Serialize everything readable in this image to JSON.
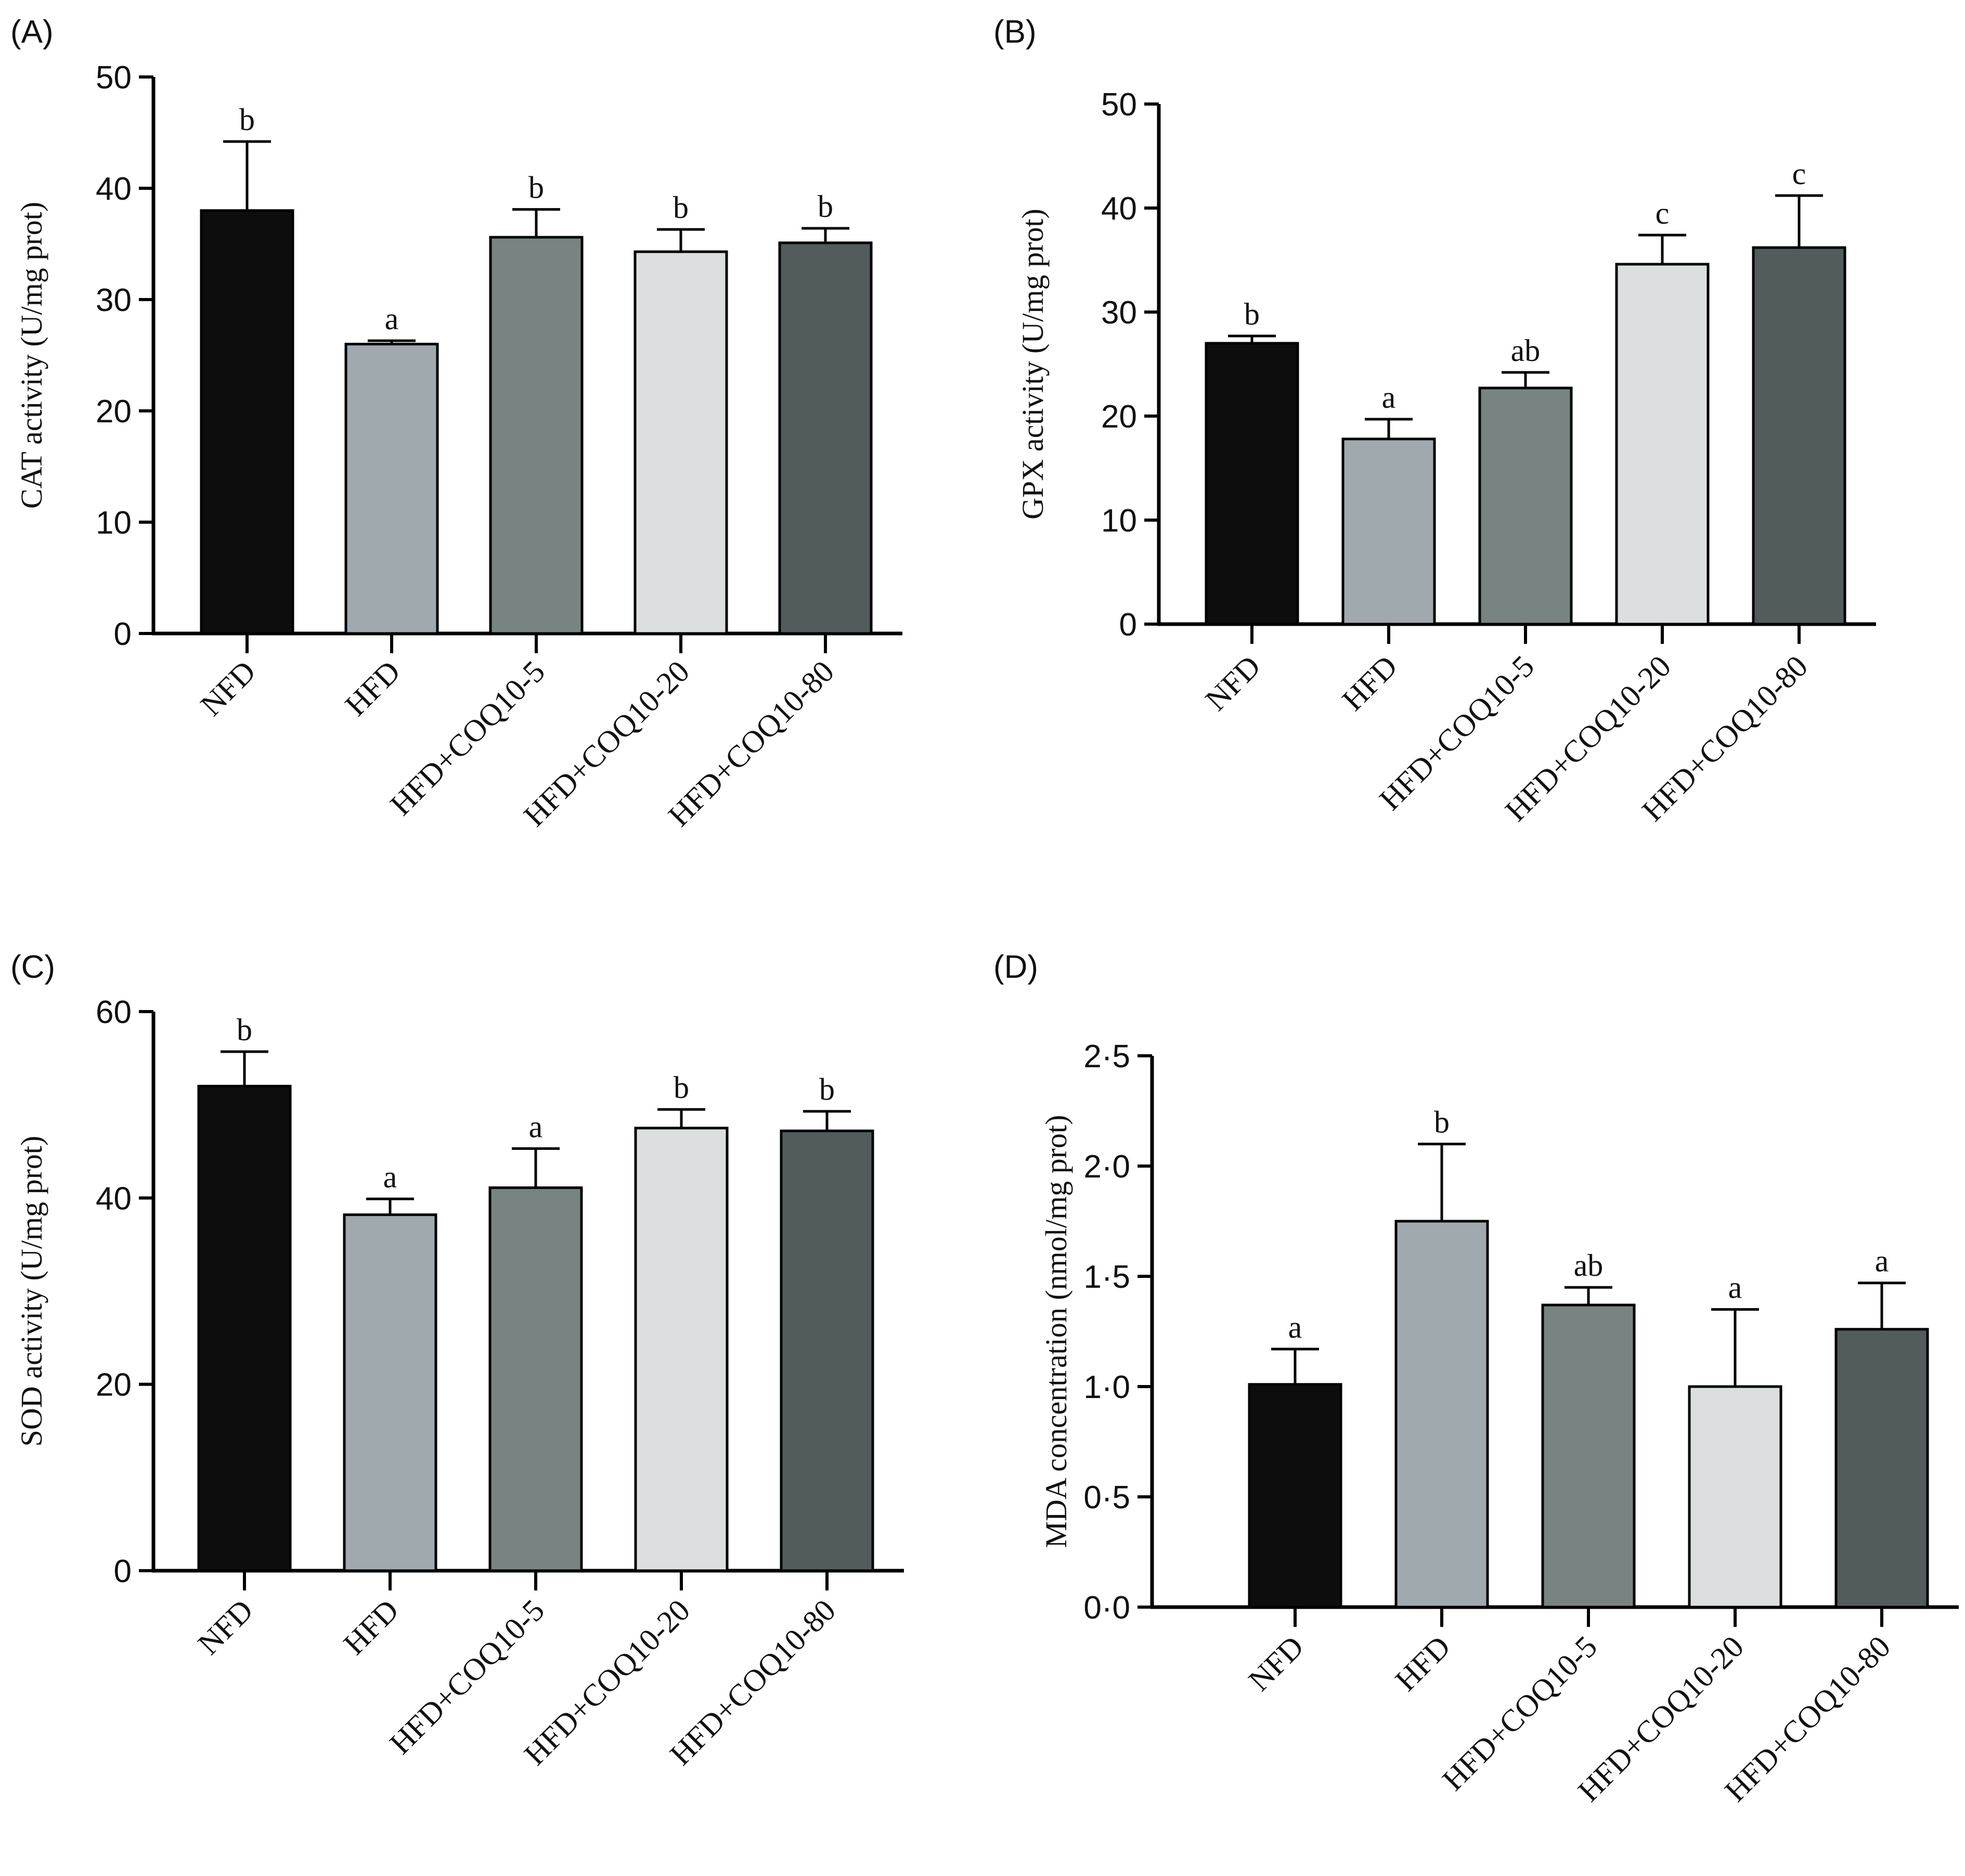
{
  "chart_data": [
    {
      "panel": "(A)",
      "type": "bar",
      "categories": [
        "NFD",
        "HFD",
        "HFD+COQ10-5",
        "HFD+COQ10-20",
        "HFD+COQ10-80"
      ],
      "values": [
        38.0,
        26.0,
        35.6,
        34.3,
        35.1
      ],
      "errors": [
        6.2,
        0.3,
        2.5,
        2.0,
        1.3
      ],
      "significance": [
        "b",
        "a",
        "b",
        "b",
        "b"
      ],
      "colors": [
        "#0d0d0d",
        "#a0a9ae",
        "#788481",
        "#dcdfdf",
        "#525c5c"
      ],
      "ylabel": "CAT activity (U/mg prot)",
      "ylim": [
        0,
        50
      ],
      "yticks": [
        "0",
        "10",
        "20",
        "30",
        "40",
        "50"
      ]
    },
    {
      "panel": "(B)",
      "type": "bar",
      "categories": [
        "NFD",
        "HFD",
        "HFD+COQ10-5",
        "HFD+COQ10-20",
        "HFD+COQ10-80"
      ],
      "values": [
        27.0,
        17.8,
        22.7,
        34.6,
        36.2
      ],
      "errors": [
        0.7,
        1.9,
        1.5,
        2.8,
        5.0
      ],
      "significance": [
        "b",
        "a",
        "ab",
        "c",
        "c"
      ],
      "colors": [
        "#0d0d0d",
        "#a0a9ae",
        "#788481",
        "#dcdfdf",
        "#525c5c"
      ],
      "ylabel": "GPX activity (U/mg prot)",
      "ylim": [
        0,
        50
      ],
      "yticks": [
        "0",
        "10",
        "20",
        "30",
        "40",
        "50"
      ]
    },
    {
      "panel": "(C)",
      "type": "bar",
      "categories": [
        "NFD",
        "HFD",
        "HFD+COQ10-5",
        "HFD+COQ10-20",
        "HFD+COQ10-80"
      ],
      "values": [
        52.0,
        38.2,
        41.1,
        47.5,
        47.2
      ],
      "errors": [
        3.7,
        1.7,
        4.2,
        2.0,
        2.1
      ],
      "significance": [
        "b",
        "a",
        "a",
        "b",
        "b"
      ],
      "colors": [
        "#0d0d0d",
        "#a0a9ae",
        "#788481",
        "#dcdfdf",
        "#525c5c"
      ],
      "ylabel": "SOD activity (U/mg prot)",
      "ylim": [
        0,
        60
      ],
      "yticks": [
        "0",
        "20",
        "40",
        "60"
      ]
    },
    {
      "panel": "(D)",
      "type": "bar",
      "categories": [
        "NFD",
        "HFD",
        "HFD+COQ10-5",
        "HFD+COQ10-20",
        "HFD+COQ10-80"
      ],
      "values": [
        1.01,
        1.75,
        1.37,
        1.0,
        1.26
      ],
      "errors": [
        0.16,
        0.35,
        0.08,
        0.35,
        0.21
      ],
      "significance": [
        "a",
        "b",
        "ab",
        "a",
        "a"
      ],
      "colors": [
        "#0d0d0d",
        "#a0a9ae",
        "#788481",
        "#dcdfdf",
        "#525c5c"
      ],
      "ylabel": "MDA concentration (nmol/mg prot)",
      "ylim": [
        0,
        2.5
      ],
      "yticks": [
        "0·0",
        "0·5",
        "1·0",
        "1·5",
        "2·0",
        "2·5"
      ]
    }
  ]
}
